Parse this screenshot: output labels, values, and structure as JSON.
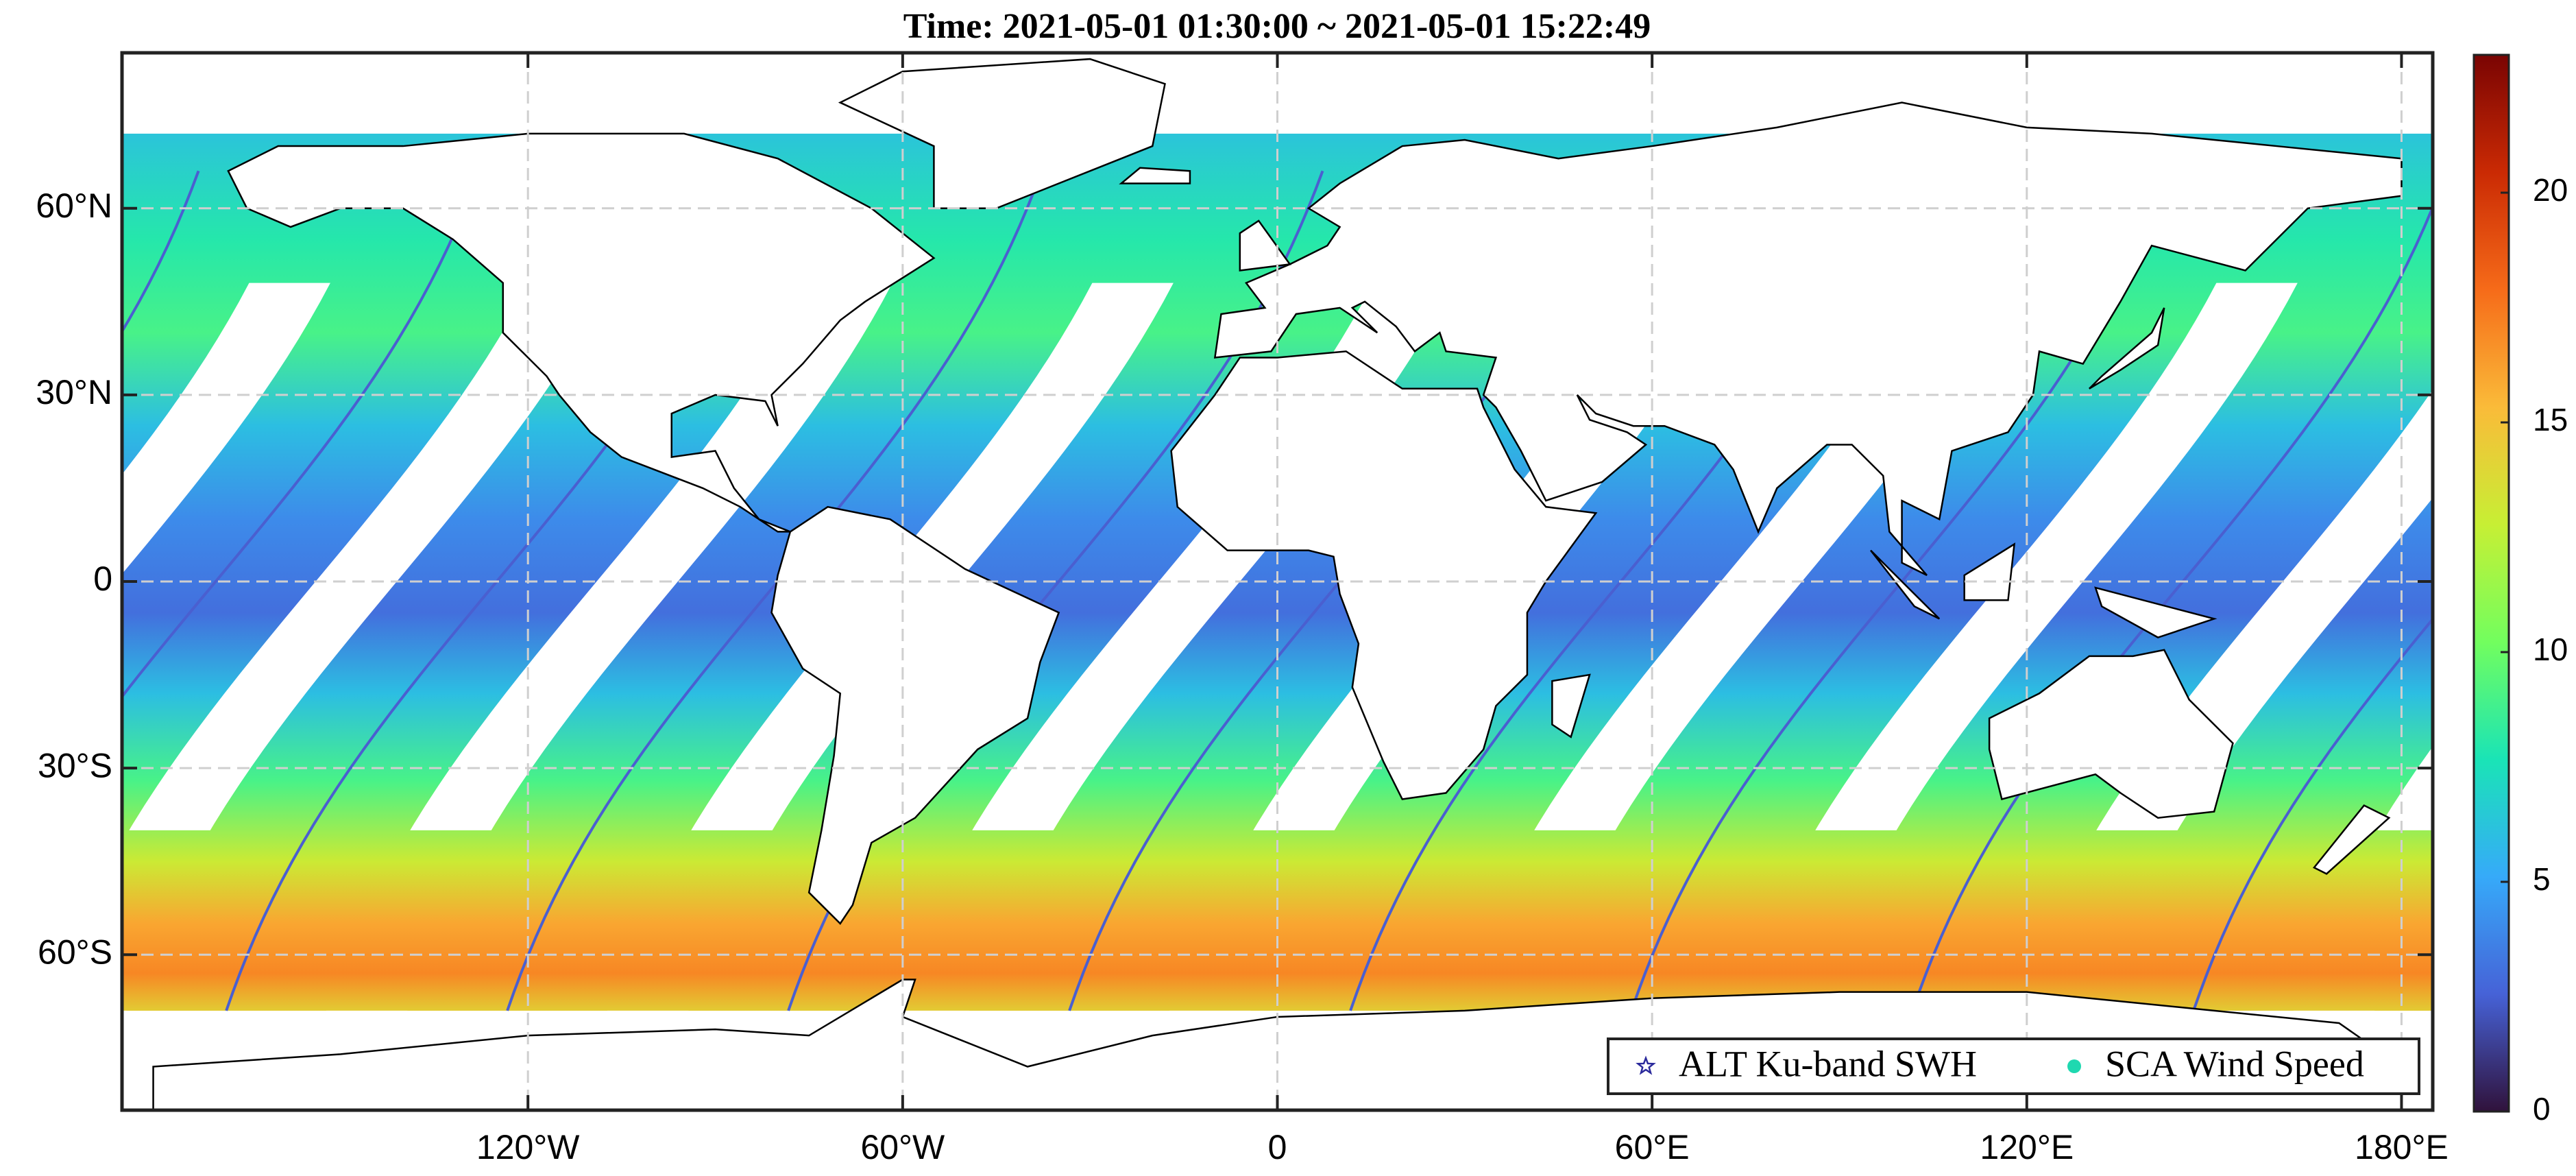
{
  "chart_data": {
    "type": "map",
    "title": "Time: 2021-05-01 01:30:00 ~ 2021-05-01 15:22:49",
    "xlim": [
      -185,
      185
    ],
    "xticks": [
      {
        "value": -120,
        "label": "120°W"
      },
      {
        "value": -60,
        "label": "60°W"
      },
      0,
      {
        "value": 60,
        "label": "60°E"
      },
      {
        "value": 120,
        "label": "120°E"
      },
      {
        "value": 180,
        "label": "180°E"
      }
    ],
    "ylim": [
      -85,
      85
    ],
    "yticks": [
      {
        "value": 60,
        "label": "60°N"
      },
      {
        "value": 30,
        "label": "30°N"
      },
      0,
      {
        "value": -30,
        "label": "30°S"
      },
      {
        "value": -60,
        "label": "60°S"
      }
    ],
    "grid": true,
    "clim": [
      0,
      23
    ],
    "cticks": [
      0,
      5,
      10,
      15,
      20
    ],
    "colormap": [
      "#30123b",
      "#4662d7",
      "#36aaf9",
      "#1ae4b6",
      "#72fe5e",
      "#c7ef34",
      "#fabb39",
      "#f66b19",
      "#ca2a04",
      "#7a0403"
    ],
    "legend": "lower right",
    "series": [
      {
        "name": "ALT Ku-band SWH",
        "color": "#2b2a9c"
      },
      {
        "name": "SCA Wind Speed",
        "color": "#1fd8b0"
      }
    ]
  }
}
